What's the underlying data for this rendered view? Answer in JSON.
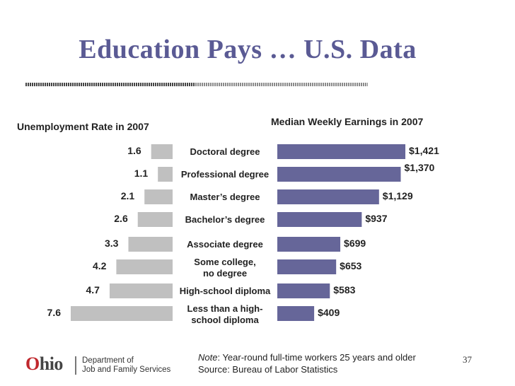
{
  "title": "Education Pays …  U.S. Data",
  "headers": {
    "left": "Unemployment Rate in 2007",
    "right": "Median Weekly Earnings in 2007"
  },
  "chart_data": [
    {
      "type": "bar",
      "orientation": "horizontal",
      "direction": "right-to-left",
      "title": "Unemployment Rate in 2007",
      "categories": [
        "Doctoral degree",
        "Professional degree",
        "Master’s degree",
        "Bachelor’s degree",
        "Associate degree",
        "Some college, no degree",
        "High-school diploma",
        "Less than a high-school diploma"
      ],
      "values": [
        1.6,
        1.1,
        2.1,
        2.6,
        3.3,
        4.2,
        4.7,
        7.6
      ],
      "data_labels": [
        "1.6",
        "1.1",
        "2.1",
        "2.6",
        "3.3",
        "4.2",
        "4.7",
        "7.6"
      ],
      "color": "#c0c0c0",
      "xlim": [
        0,
        7.6
      ],
      "grid": false
    },
    {
      "type": "bar",
      "orientation": "horizontal",
      "title": "Median Weekly Earnings in 2007",
      "categories": [
        "Doctoral degree",
        "Professional degree",
        "Master’s degree",
        "Bachelor’s degree",
        "Associate degree",
        "Some college, no degree",
        "High-school diploma",
        "Less than a high-school diploma"
      ],
      "values": [
        1421,
        1370,
        1129,
        937,
        699,
        653,
        583,
        409
      ],
      "data_labels": [
        "$1,421",
        "$1,370",
        "$1,129",
        "$937",
        "$699",
        "$653",
        "$583",
        "$409"
      ],
      "color": "#666699",
      "xlim": [
        0,
        1421
      ],
      "grid": false
    }
  ],
  "category_labels": [
    [
      "Doctoral degree"
    ],
    [
      "Professional degree"
    ],
    [
      "Master’s degree"
    ],
    [
      "Bachelor’s degree"
    ],
    [
      "Associate degree"
    ],
    [
      "Some college,",
      "no degree"
    ],
    [
      "High-school diploma"
    ],
    [
      "Less than a high-",
      "school diploma"
    ]
  ],
  "note": {
    "label": "Note",
    "text": ": Year-round full-time workers 25 years and older",
    "source": "Source: Bureau of Labor Statistics"
  },
  "page_number": "37",
  "logo": {
    "wordmark_o": "O",
    "wordmark_rest": "hio",
    "dept_line1": "Department of",
    "dept_line2": "Job and Family Services"
  },
  "colors": {
    "title": "#5a5a94",
    "earnings_bar": "#666699",
    "unemployment_bar": "#c0c0c0",
    "logo_accent": "#c0272d"
  }
}
